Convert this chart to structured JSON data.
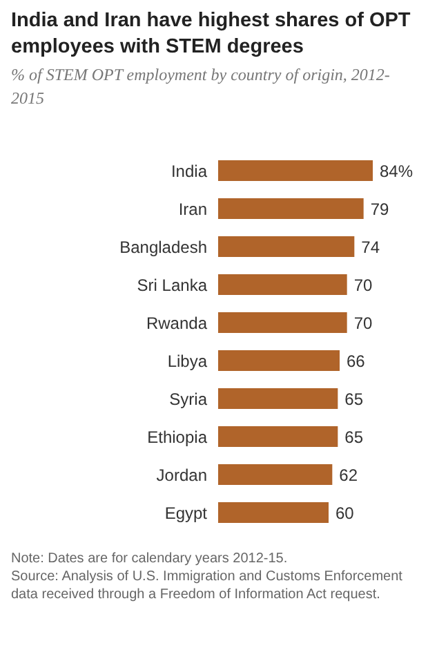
{
  "chart_data": {
    "type": "bar",
    "orientation": "horizontal",
    "title": "India and Iran have highest shares of OPT employees with STEM degrees",
    "subtitle": "% of STEM OPT employment by country of origin, 2012-2015",
    "categories": [
      "India",
      "Iran",
      "Bangladesh",
      "Sri Lanka",
      "Rwanda",
      "Libya",
      "Syria",
      "Ethiopia",
      "Jordan",
      "Egypt"
    ],
    "values": [
      84,
      79,
      74,
      70,
      70,
      66,
      65,
      65,
      62,
      60
    ],
    "value_labels": [
      "84%",
      "79",
      "74",
      "70",
      "70",
      "66",
      "65",
      "65",
      "62",
      "60"
    ],
    "color": "#b0642a",
    "annotations": [
      "Note: Dates are for calendary years 2012-15.",
      "Source: Analysis of U.S. Immigration and Customs Enforcement data received through a Freedom of Information Act request."
    ]
  }
}
